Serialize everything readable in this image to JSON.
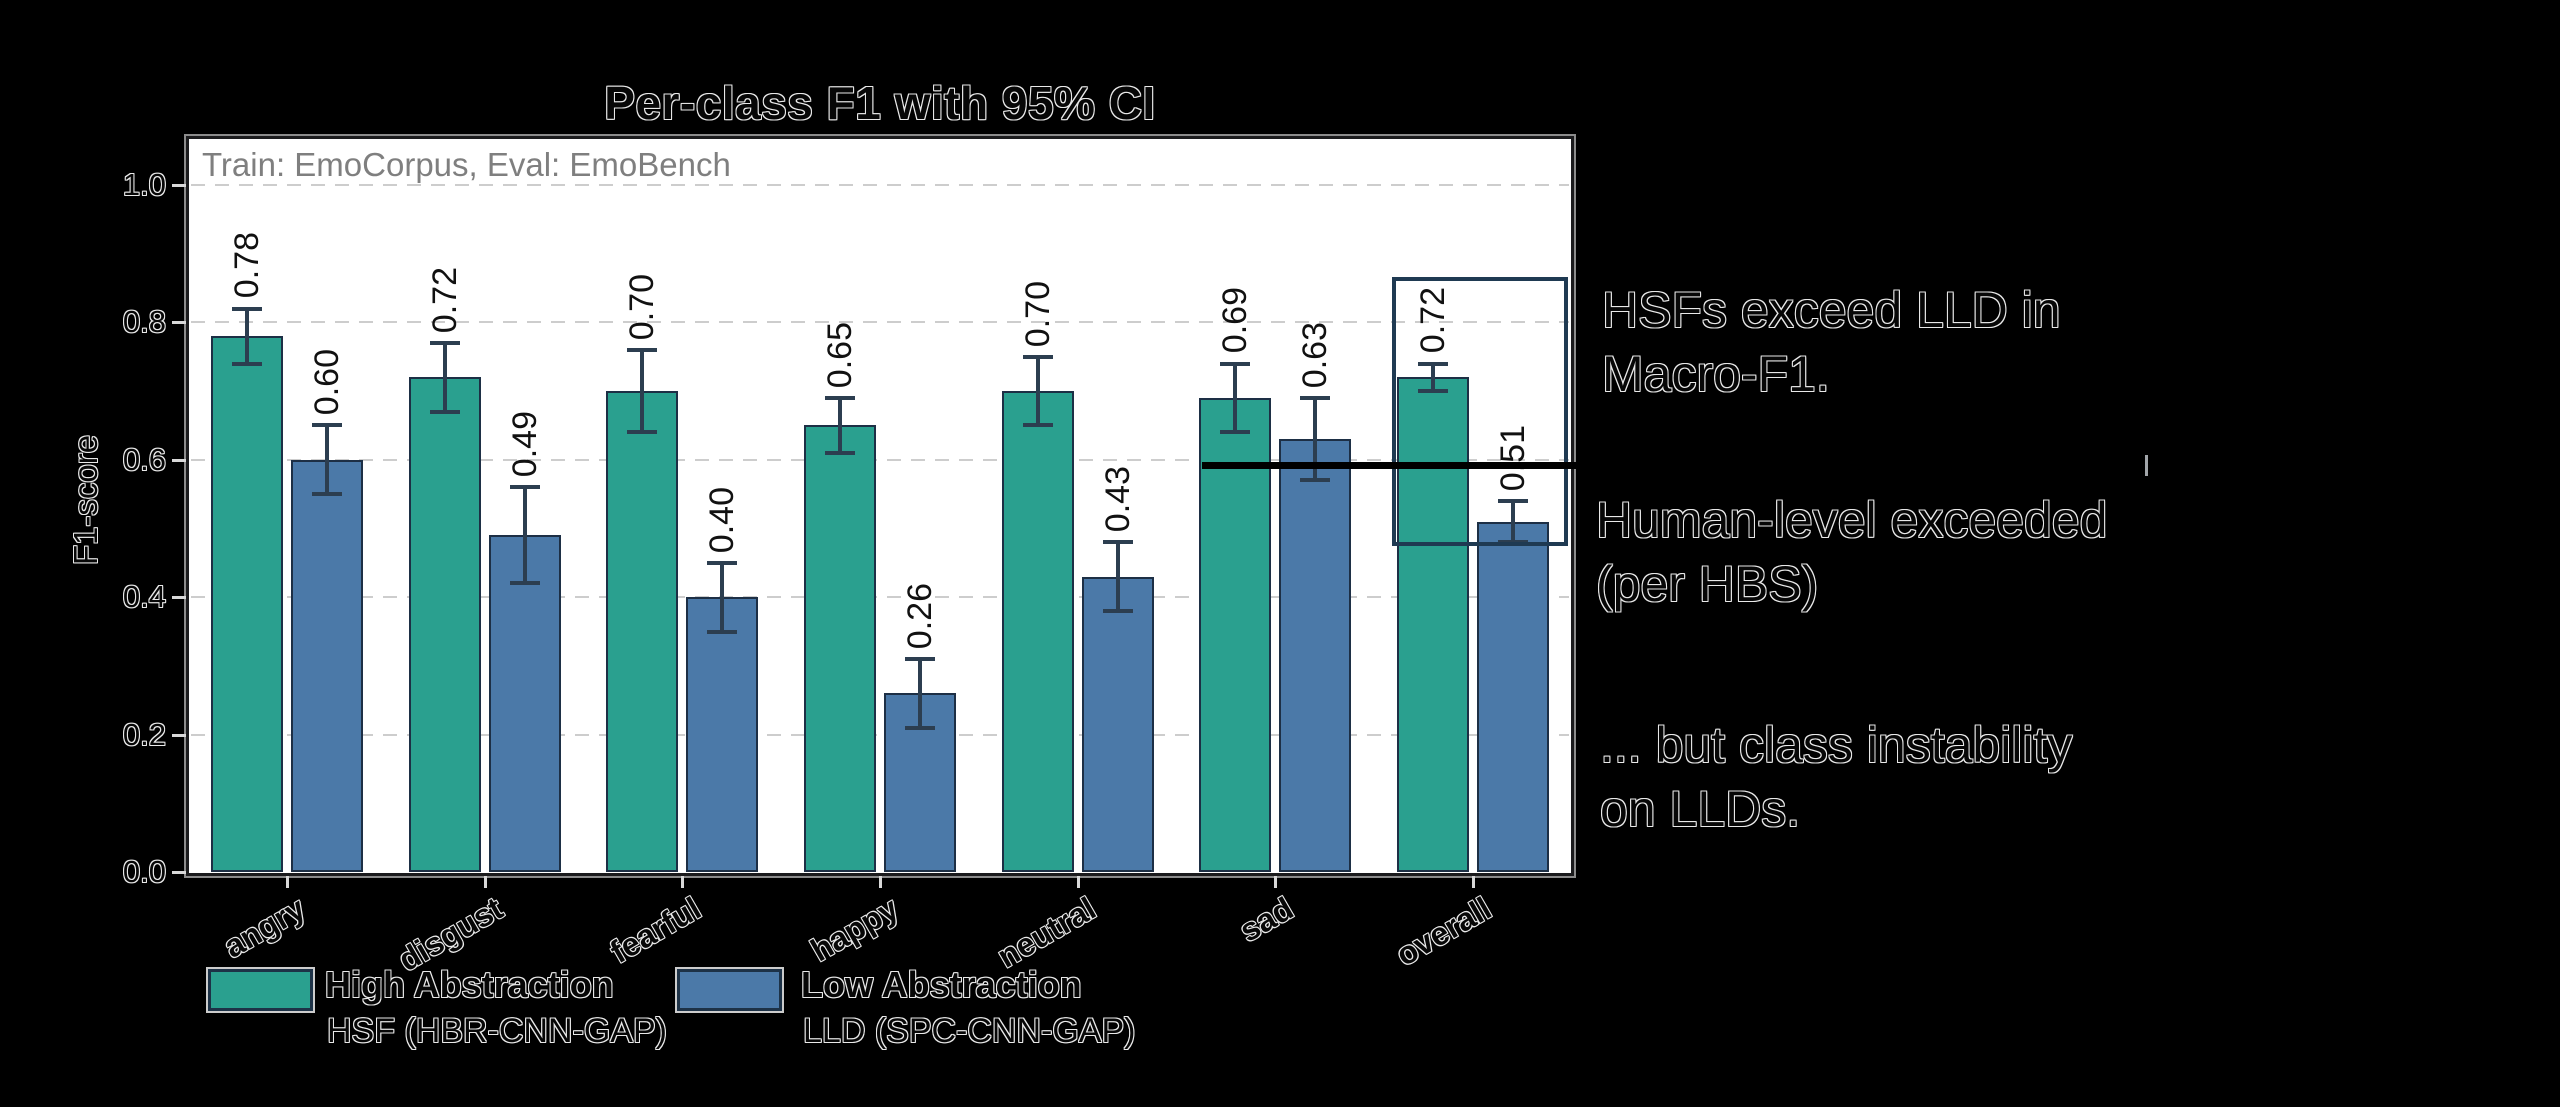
{
  "figure": {
    "title": "Per-class F1 with 95% CI",
    "inner_caption": "Train: EmoCorpus, Eval: EmoBench",
    "ylabel": "F1-score"
  },
  "legend": {
    "entries": [
      {
        "label": "High Abstraction",
        "sublabel": "HSF (HBR-CNN-GAP)",
        "color": "#2aa08f"
      },
      {
        "label": "Low Abstraction",
        "sublabel": "LLD (SPC-CNN-GAP)",
        "color": "#4b79a8"
      }
    ]
  },
  "annotations": {
    "hsf_vs_lld": "HSFs exceed LLD in\nMacro-F1.",
    "human_level": "Human-level exceeded\n(per HBS)",
    "instability": "... but class instability\non LLDs."
  },
  "colors": {
    "high_abstraction_bar": "#2aa08f",
    "low_abstraction_bar": "#4b79a8",
    "bar_edge": "#1d2f45",
    "error_bar": "#2c3e50",
    "reference_line": "#000000",
    "highlight_box": "#1f3a52",
    "gridline": "#cdcdcd",
    "inner_caption_text": "#7f7f7f",
    "plot_background": "#ffffff",
    "page_background": "#000000"
  },
  "chart_data": {
    "type": "bar",
    "title": "Per-class F1 with 95% CI",
    "subtitle": "Train: EmoCorpus, Eval: EmoBench",
    "xlabel": "",
    "ylabel": "F1-score",
    "ylim": [
      0,
      1.07
    ],
    "yticks": [
      0.0,
      0.2,
      0.4,
      0.6,
      0.8,
      1.0
    ],
    "grid": "horizontal-dashed",
    "legend_position": "bottom-left",
    "error_bars": "95% CI",
    "value_labels": "rotated-90-above-bars",
    "categories": [
      "angry",
      "disgust",
      "fearful",
      "happy",
      "neutral",
      "sad",
      "overall"
    ],
    "series": [
      {
        "name": "High Abstraction",
        "model": "HSF (HBR-CNN-GAP)",
        "color": "#2aa08f",
        "values": [
          0.78,
          0.72,
          0.7,
          0.65,
          0.7,
          0.69,
          0.72
        ],
        "ci95": [
          0.04,
          0.05,
          0.06,
          0.04,
          0.05,
          0.05,
          0.02
        ]
      },
      {
        "name": "Low Abstraction",
        "model": "LLD (SPC-CNN-GAP)",
        "color": "#4b79a8",
        "values": [
          0.6,
          0.49,
          0.4,
          0.26,
          0.43,
          0.63,
          0.51
        ],
        "ci95": [
          0.05,
          0.07,
          0.05,
          0.05,
          0.05,
          0.06,
          0.03
        ]
      }
    ],
    "reference_line": {
      "y": 0.59,
      "color": "#000000",
      "spans": "from sad group to right margin"
    },
    "highlight_box": {
      "around_category": "overall",
      "color": "#1f3a52"
    },
    "annotations": [
      "HSFs exceed LLD in Macro-F1.",
      "Human-level exceeded (per HBS)",
      "... but class instability on LLDs."
    ]
  }
}
